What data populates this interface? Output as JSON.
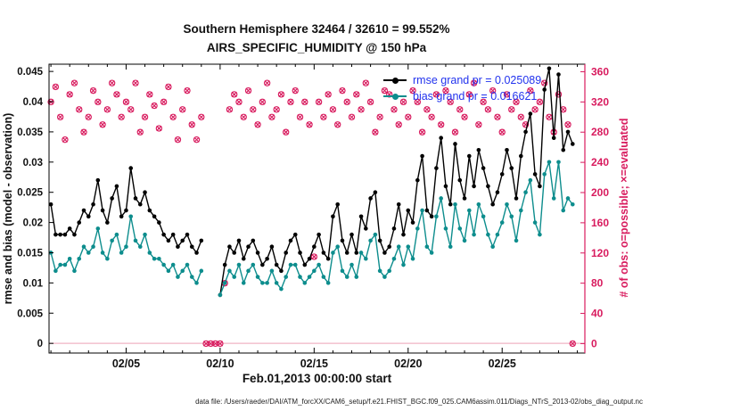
{
  "title": {
    "line1": "Southern Hemisphere 32464 / 32610 = 99.552%",
    "line2": "AIRS_SPECIFIC_HUMIDITY @ 150 hPa"
  },
  "footer": {
    "datafile": "data file: /Users/raeder/DAI/ATM_forcXX/CAM6_setup/f.e21.FHIST_BGC.f09_025.CAM6assim.011/Diags_NTrS_2013-02/obs_diag_output.nc"
  },
  "colors": {
    "crimson": "#d81b5e",
    "teal": "#0d8d8d",
    "black": "#000000",
    "legend_text": "#2233ee",
    "zero_line": "#f0b3c4"
  },
  "chart_data": {
    "type": "line",
    "title": "Southern Hemisphere 32464 / 32610 = 99.552%",
    "subtitle": "AIRS_SPECIFIC_HUMIDITY @ 150 hPa",
    "xlabel": "Feb.01,2013 00:00:00 start",
    "ylabel_left": "rmse and bias (model - observation)",
    "ylabel_right": "# of obs: o=possible; ×=evaluated",
    "grid": false,
    "legend_position": "upper-right-inside",
    "x": {
      "start": 1,
      "step": 0.25,
      "count": 112,
      "unit": "day of Feb 2013, 6-hourly"
    },
    "xlim": [
      0.9,
      29.4
    ],
    "ylim_left": [
      -0.0016,
      0.0462
    ],
    "ylim_right": [
      -12.5,
      370
    ],
    "xticks": [
      {
        "v": 5,
        "label": "02/05"
      },
      {
        "v": 10,
        "label": "02/10"
      },
      {
        "v": 15,
        "label": "02/15"
      },
      {
        "v": 20,
        "label": "02/20"
      },
      {
        "v": 25,
        "label": "02/25"
      }
    ],
    "x_minor_ticks": [
      1,
      2,
      3,
      4,
      6,
      7,
      8,
      9,
      11,
      12,
      13,
      14,
      16,
      17,
      18,
      19,
      21,
      22,
      23,
      24,
      26,
      27,
      28,
      29
    ],
    "yticks_left": [
      "0",
      "0.005",
      "0.01",
      "0.015",
      "0.02",
      "0.025",
      "0.03",
      "0.035",
      "0.04",
      "0.045"
    ],
    "yticks_right": [
      "0",
      "40",
      "80",
      "120",
      "160",
      "200",
      "240",
      "280",
      "320",
      "360"
    ],
    "series": [
      {
        "name": "rmse",
        "axis": "left",
        "color": "#000000",
        "marker": "filled-circle",
        "legend": "rmse grand pr = 0.025089",
        "values": [
          0.023,
          0.018,
          0.018,
          0.018,
          0.019,
          0.018,
          0.02,
          0.022,
          0.021,
          0.023,
          0.027,
          0.022,
          0.02,
          0.024,
          0.026,
          0.021,
          0.022,
          0.029,
          0.024,
          0.023,
          0.025,
          0.022,
          0.021,
          0.02,
          0.018,
          0.017,
          0.018,
          0.016,
          0.017,
          0.018,
          0.016,
          0.015,
          0.017,
          null,
          null,
          null,
          0.008,
          0.013,
          0.016,
          0.015,
          0.017,
          0.014,
          0.016,
          0.017,
          0.015,
          0.013,
          0.014,
          0.016,
          0.013,
          0.012,
          0.015,
          0.017,
          0.018,
          0.015,
          0.013,
          0.014,
          0.016,
          0.018,
          0.015,
          0.014,
          0.021,
          0.023,
          0.017,
          0.015,
          0.018,
          0.015,
          0.021,
          0.019,
          0.024,
          0.025,
          0.017,
          0.015,
          0.016,
          0.019,
          0.023,
          0.018,
          0.022,
          0.02,
          0.027,
          0.031,
          0.022,
          0.021,
          0.029,
          0.034,
          0.026,
          0.023,
          0.033,
          0.027,
          0.024,
          0.031,
          0.026,
          0.032,
          0.029,
          0.026,
          0.023,
          0.025,
          0.028,
          0.032,
          0.029,
          0.024,
          0.031,
          0.035,
          0.038,
          0.028,
          0.026,
          0.042,
          0.0455,
          0.034,
          0.0445,
          0.032,
          0.035,
          0.033
        ]
      },
      {
        "name": "bias",
        "axis": "left",
        "color": "#0d8d8d",
        "marker": "filled-circle",
        "legend": "bias grand pr = 0.016621",
        "values": [
          0.015,
          0.012,
          0.013,
          0.013,
          0.014,
          0.012,
          0.014,
          0.016,
          0.015,
          0.016,
          0.019,
          0.015,
          0.014,
          0.017,
          0.018,
          0.015,
          0.016,
          0.021,
          0.017,
          0.016,
          0.018,
          0.015,
          0.014,
          0.014,
          0.013,
          0.012,
          0.013,
          0.011,
          0.012,
          0.013,
          0.011,
          0.01,
          0.012,
          null,
          null,
          null,
          0.008,
          0.01,
          0.012,
          0.011,
          0.013,
          0.01,
          0.012,
          0.013,
          0.011,
          0.01,
          0.01,
          0.012,
          0.01,
          0.009,
          0.011,
          0.013,
          0.013,
          0.011,
          0.01,
          0.011,
          0.012,
          0.013,
          0.011,
          0.01,
          0.015,
          0.016,
          0.012,
          0.011,
          0.013,
          0.011,
          0.015,
          0.014,
          0.017,
          0.018,
          0.012,
          0.011,
          0.012,
          0.014,
          0.016,
          0.013,
          0.016,
          0.014,
          0.019,
          0.022,
          0.016,
          0.015,
          0.021,
          0.024,
          0.019,
          0.016,
          0.023,
          0.019,
          0.017,
          0.022,
          0.018,
          0.023,
          0.021,
          0.018,
          0.016,
          0.018,
          0.02,
          0.023,
          0.021,
          0.017,
          0.022,
          0.025,
          0.027,
          0.02,
          0.018,
          0.028,
          0.03,
          0.024,
          0.03,
          0.022,
          0.024,
          0.023
        ]
      },
      {
        "name": "obs",
        "axis": "right",
        "color": "#d81b5e",
        "marker": "circle-and-x",
        "note": "o=possible and ×=evaluated overlap (99.552% evaluated)",
        "values": [
          320,
          340,
          300,
          270,
          330,
          345,
          310,
          280,
          300,
          335,
          320,
          290,
          310,
          345,
          330,
          300,
          320,
          310,
          345,
          280,
          300,
          330,
          315,
          285,
          320,
          340,
          300,
          270,
          310,
          335,
          290,
          270,
          300,
          0,
          0,
          0,
          0,
          80,
          310,
          330,
          320,
          300,
          335,
          310,
          290,
          320,
          345,
          300,
          310,
          330,
          280,
          320,
          335,
          300,
          320,
          290,
          115,
          320,
          300,
          330,
          310,
          290,
          335,
          320,
          300,
          330,
          310,
          345,
          320,
          280,
          300,
          335,
          330,
          310,
          290,
          320,
          300,
          335,
          320,
          280,
          310,
          300,
          330,
          290,
          335,
          320,
          280,
          310,
          300,
          330,
          345,
          290,
          320,
          310,
          335,
          300,
          280,
          330,
          310,
          320,
          300,
          290,
          335,
          310,
          320,
          345,
          300,
          280,
          330,
          310,
          290,
          0
        ]
      }
    ]
  }
}
